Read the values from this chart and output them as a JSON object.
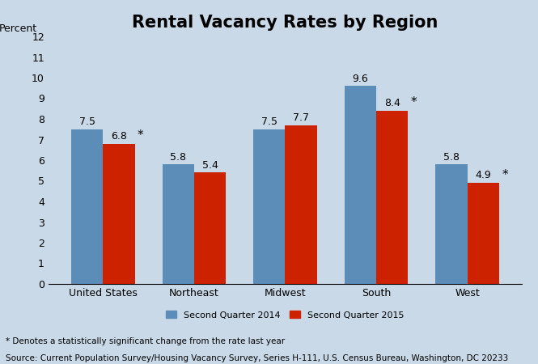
{
  "title": "Rental Vacancy Rates by Region",
  "ylabel": "Percent",
  "categories": [
    "United States",
    "Northeast",
    "Midwest",
    "South",
    "West"
  ],
  "series": [
    {
      "label": "Second Quarter 2014",
      "values": [
        7.5,
        5.8,
        7.5,
        9.6,
        5.8
      ],
      "color": "#5B8DB8"
    },
    {
      "label": "Second Quarter 2015",
      "values": [
        6.8,
        5.4,
        7.7,
        8.4,
        4.9
      ],
      "color": "#CC2200"
    }
  ],
  "significant": [
    true,
    false,
    false,
    true,
    true
  ],
  "ylim": [
    0,
    12
  ],
  "yticks": [
    0,
    1,
    2,
    3,
    4,
    5,
    6,
    7,
    8,
    9,
    10,
    11,
    12
  ],
  "background_color": "#C9D9E8",
  "bar_width": 0.35,
  "footnote1": "* Denotes a statistically significant change from the rate last year",
  "footnote2": "Source: Current Population Survey/Housing Vacancy Survey, Series H-111, U.S. Census Bureau, Washington, DC 20233",
  "title_fontsize": 15,
  "axis_fontsize": 9,
  "label_fontsize": 9,
  "footnote_fontsize": 7.5
}
